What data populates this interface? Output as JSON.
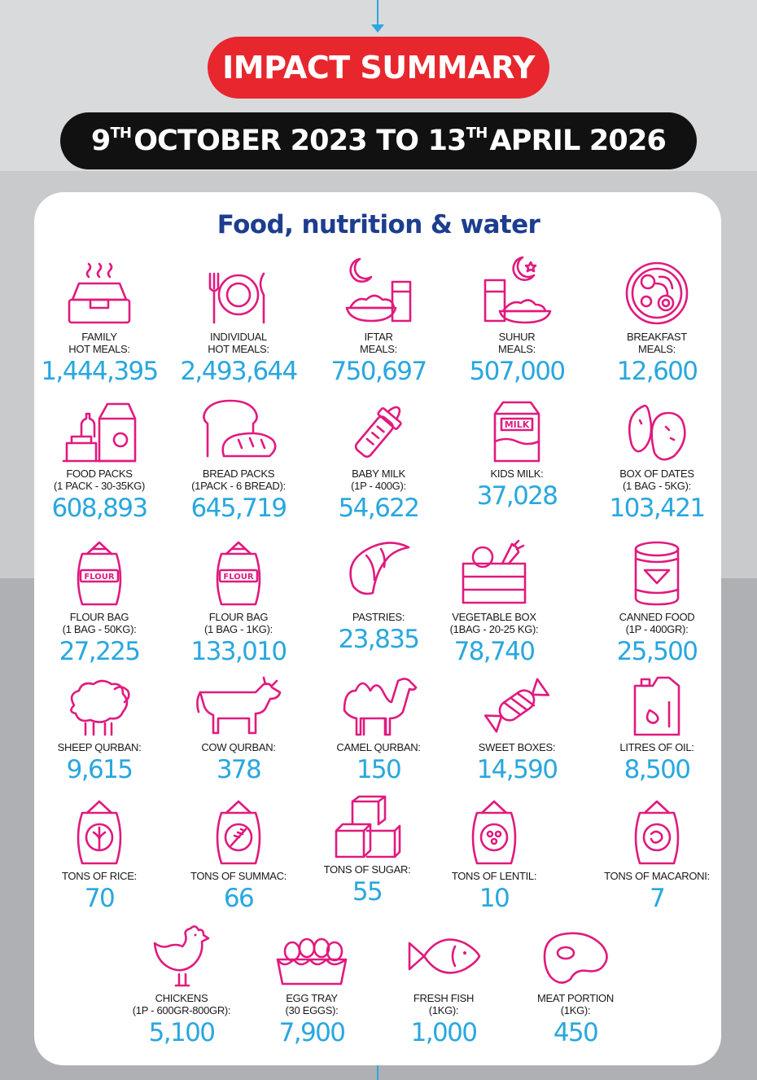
{
  "header": {
    "title": "IMPACT SUMMARY",
    "date_day1": "9",
    "date_sup1": "TH",
    "date_mid": "OCTOBER 2023 TO 13",
    "date_sup2": "TH",
    "date_end": "APRIL 2026"
  },
  "section_title": "Food, nutrition & water",
  "colors": {
    "accent_red": "#e8262d",
    "icon_pink": "#e01a7e",
    "value_blue": "#29a7df",
    "title_navy": "#1d3d8f"
  },
  "items": [
    {
      "label": "FAMILY\nHOT MEALS:",
      "value": "1,444,395",
      "icon": "food-box-icon"
    },
    {
      "label": "INDIVIDUAL\nHOT MEALS:",
      "value": "2,493,644",
      "icon": "plate-cutlery-icon"
    },
    {
      "label": "IFTAR\nMEALS:",
      "value": "750,697",
      "icon": "iftar-moon-icon"
    },
    {
      "label": "SUHUR\nMEALS:",
      "value": "507,000",
      "icon": "suhur-moon-star-icon"
    },
    {
      "label": "BREAKFAST\nMEALS:",
      "value": "12,600",
      "icon": "breakfast-plate-icon"
    },
    {
      "label": "FOOD PACKS\n(1 PACK - 30-35KG)",
      "value": "608,893",
      "icon": "grocery-pack-icon"
    },
    {
      "label": "BREAD PACKS\n(1PACK - 6 BREAD):",
      "value": "645,719",
      "icon": "bread-icon"
    },
    {
      "label": "BABY MILK\n(1P - 400G):",
      "value": "54,622",
      "icon": "baby-bottle-icon"
    },
    {
      "label": "KIDS MILK:",
      "value": "37,028",
      "icon": "milk-carton-icon"
    },
    {
      "label": "BOX OF DATES\n(1 BAG - 5KG):",
      "value": "103,421",
      "icon": "dates-icon"
    },
    {
      "label": "FLOUR BAG\n(1 BAG - 50KG):",
      "value": "27,225",
      "icon": "flour-bag-icon"
    },
    {
      "label": "FLOUR BAG\n(1 BAG - 1KG):",
      "value": "133,010",
      "icon": "flour-bag-small-icon"
    },
    {
      "label": "PASTRIES:",
      "value": "23,835",
      "icon": "croissant-icon"
    },
    {
      "label": "VEGETABLE BOX\n(1BAG - 20-25 KG):",
      "value": "78,740",
      "icon": "vegetable-crate-icon"
    },
    {
      "label": "CANNED FOOD\n(1P - 400GR):",
      "value": "25,500",
      "icon": "can-icon"
    },
    {
      "label": "SHEEP QURBAN:",
      "value": "9,615",
      "icon": "sheep-icon"
    },
    {
      "label": "COW QURBAN:",
      "value": "378",
      "icon": "cow-icon"
    },
    {
      "label": "CAMEL QURBAN:",
      "value": "150",
      "icon": "camel-icon"
    },
    {
      "label": "SWEET BOXES:",
      "value": "14,590",
      "icon": "candy-icon"
    },
    {
      "label": "LITRES OF OIL:",
      "value": "8,500",
      "icon": "oil-jerrycan-icon"
    },
    {
      "label": "TONS OF RICE:",
      "value": "70",
      "icon": "rice-sack-icon"
    },
    {
      "label": "TONS OF SUMMAC:",
      "value": "66",
      "icon": "summac-sack-icon"
    },
    {
      "label": "TONS OF SUGAR:",
      "value": "55",
      "icon": "sugar-cubes-icon"
    },
    {
      "label": "TONS OF LENTIL:",
      "value": "10",
      "icon": "lentil-sack-icon"
    },
    {
      "label": "TONS OF MACARONI:",
      "value": "7",
      "icon": "macaroni-sack-icon"
    },
    {
      "label": "CHICKENS\n(1P - 600GR-800GR):",
      "value": "5,100",
      "icon": "chicken-icon"
    },
    {
      "label": "EGG TRAY\n(30 EGGS):",
      "value": "7,900",
      "icon": "egg-tray-icon"
    },
    {
      "label": "FRESH FISH\n(1KG):",
      "value": "1,000",
      "icon": "fish-icon"
    },
    {
      "label": "MEAT PORTION\n(1KG):",
      "value": "450",
      "icon": "steak-icon"
    }
  ],
  "sack_labels": {
    "flour": "FLOUR",
    "milk": "MILK"
  }
}
